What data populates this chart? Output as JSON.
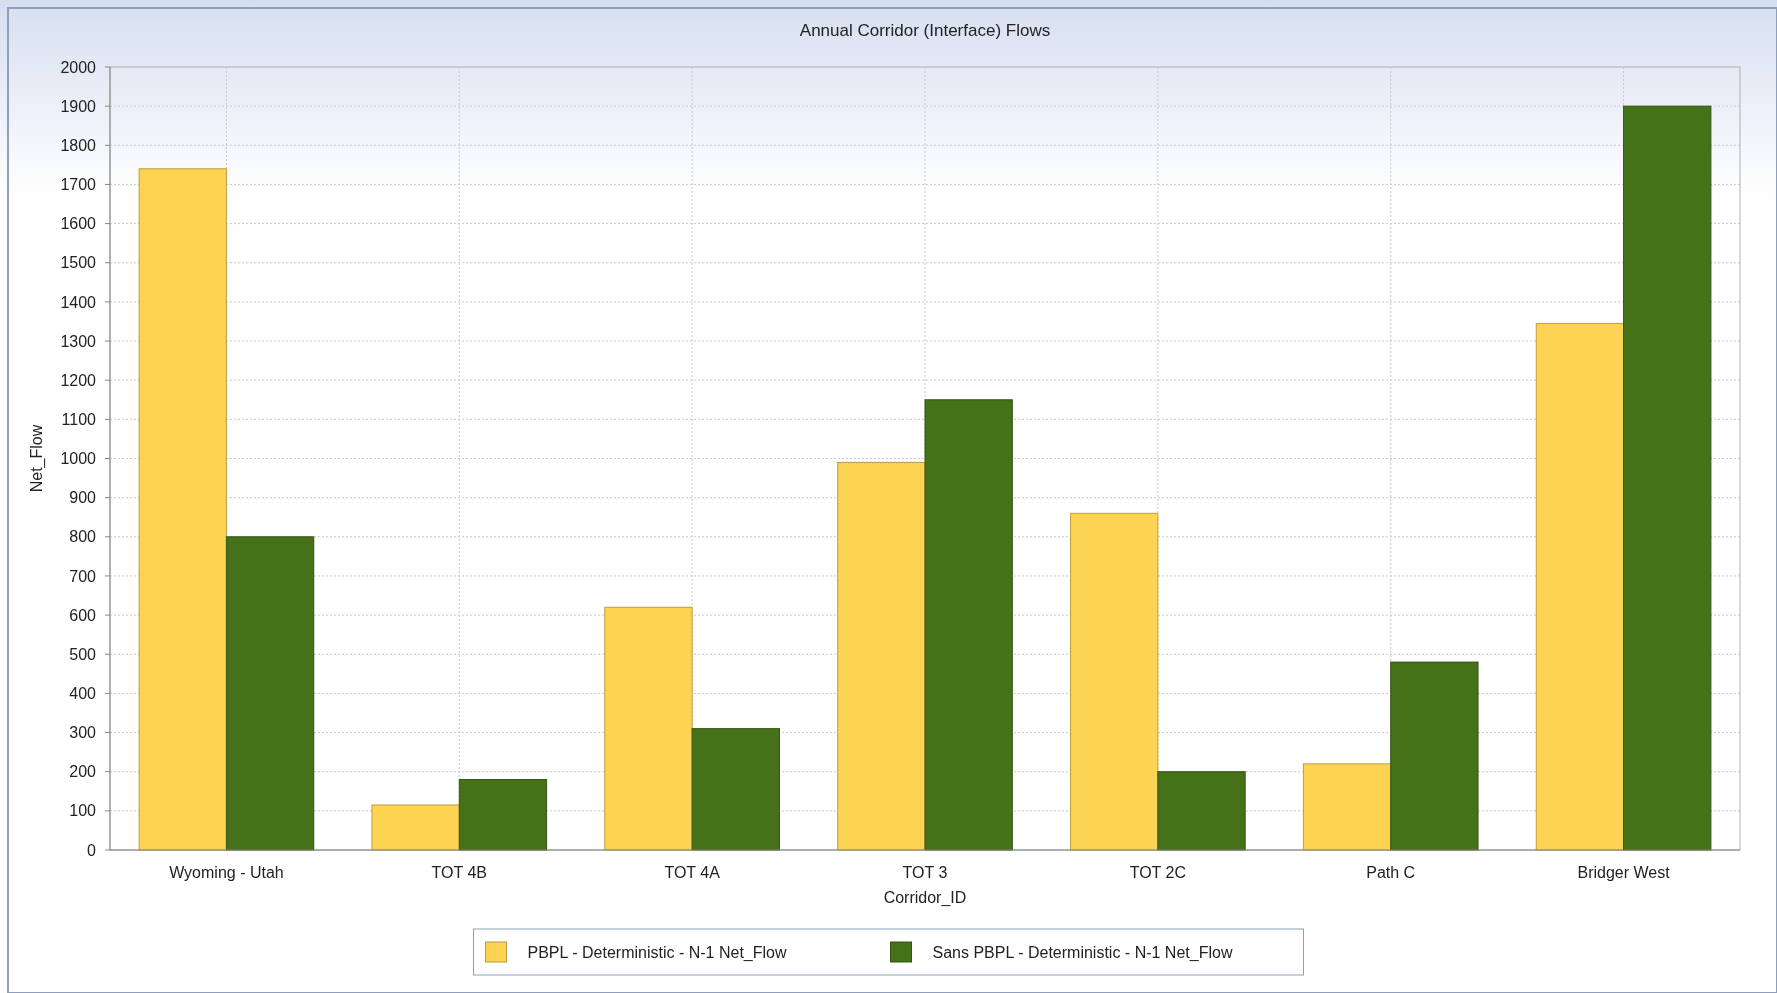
{
  "chart_data": {
    "type": "bar",
    "title": "Annual Corridor (Interface) Flows",
    "xlabel": "Corridor_ID",
    "ylabel": "Net_Flow",
    "categories": [
      "Wyoming - Utah",
      "TOT 4B",
      "TOT 4A",
      "TOT 3",
      "TOT 2C",
      "Path C",
      "Bridger West"
    ],
    "series": [
      {
        "name": "PBPL - Deterministic - N-1 Net_Flow",
        "color": "#fdd353",
        "values": [
          1740,
          115,
          620,
          990,
          860,
          220,
          1345
        ]
      },
      {
        "name": "Sans PBPL - Deterministic - N-1 Net_Flow",
        "color": "#457119",
        "values": [
          800,
          180,
          310,
          1150,
          200,
          480,
          1900
        ]
      }
    ],
    "ylim": [
      0,
      2000
    ],
    "yticks": [
      0,
      100,
      200,
      300,
      400,
      500,
      600,
      700,
      800,
      900,
      1000,
      1100,
      1200,
      1300,
      1400,
      1500,
      1600,
      1700,
      1800,
      1900,
      2000
    ],
    "grid": true,
    "legend": "bottom"
  }
}
